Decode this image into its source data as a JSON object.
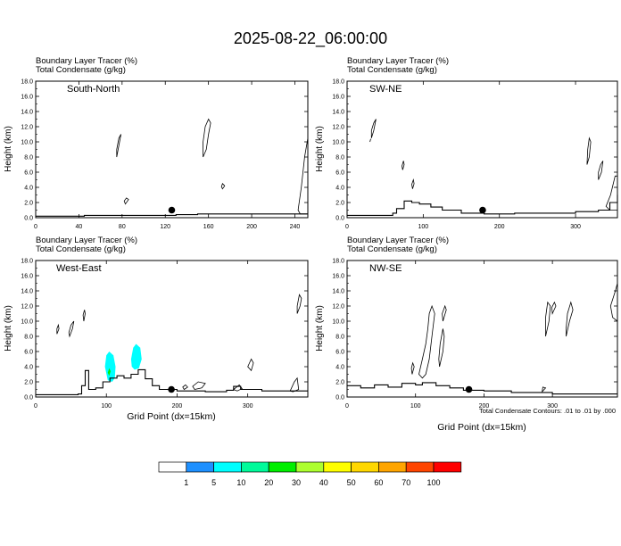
{
  "title": "2025-08-22_06:00:00",
  "xlabel": "Grid Point (dx=15km)",
  "ylabel": "Height (km)",
  "panel_header_1": "Boundary Layer Tracer   (%)",
  "panel_header_2": "Total Condensate   (g/kg)",
  "contour_note": "Total Condensate Contours: .01 to .01 by .000",
  "colorbar": {
    "labels": [
      "1",
      "5",
      "10",
      "20",
      "30",
      "40",
      "50",
      "60",
      "70",
      "100"
    ],
    "colors": [
      "#ffffff",
      "#1e90ff",
      "#00ffff",
      "#00fa9a",
      "#00ee00",
      "#adff2f",
      "#ffff00",
      "#ffd700",
      "#ffa500",
      "#ff4500",
      "#ff0000"
    ]
  },
  "chart_data": [
    {
      "type": "contour",
      "panel": "South-North",
      "ylim": [
        0,
        18
      ],
      "yticks": [
        "0.0",
        "2.0",
        "4.0",
        "6.0",
        "8.0",
        "10.0",
        "12.0",
        "14.0",
        "16.0",
        "18.0"
      ],
      "xlim": [
        0,
        252
      ],
      "xticks": [
        {
          "v": 0,
          "label": "0"
        },
        {
          "v": 40,
          "label": "40"
        },
        {
          "v": 80,
          "label": "80"
        },
        {
          "v": 120,
          "label": "120"
        },
        {
          "v": 160,
          "label": "160"
        },
        {
          "v": 200,
          "label": "200"
        },
        {
          "v": 240,
          "label": "240"
        }
      ],
      "marker": {
        "x": 126,
        "y": 1.0
      },
      "terrain": [
        [
          0,
          0.2
        ],
        [
          35,
          0.2
        ],
        [
          45,
          0.3
        ],
        [
          110,
          0.3
        ],
        [
          130,
          0.4
        ],
        [
          150,
          0.5
        ],
        [
          170,
          0.5
        ],
        [
          210,
          0.5
        ],
        [
          252,
          0.5
        ]
      ],
      "condensate_contours": [
        [
          [
            75,
            8
          ],
          [
            77,
            9.5
          ],
          [
            79,
            11
          ],
          [
            77,
            10.5
          ],
          [
            75,
            9
          ]
        ],
        [
          [
            155,
            8
          ],
          [
            158,
            9
          ],
          [
            160,
            11
          ],
          [
            162,
            12.5
          ],
          [
            160,
            13
          ],
          [
            157,
            12
          ],
          [
            155,
            10
          ]
        ],
        [
          [
            173,
            3.8
          ],
          [
            175,
            4.2
          ],
          [
            173,
            4.5
          ],
          [
            172,
            4.1
          ]
        ],
        [
          [
            83,
            1.8
          ],
          [
            86,
            2.4
          ],
          [
            84,
            2.6
          ],
          [
            82,
            2.2
          ]
        ],
        [
          [
            243,
            1
          ],
          [
            246,
            4
          ],
          [
            249,
            8
          ],
          [
            252,
            10.5
          ],
          [
            252,
            0.5
          ],
          [
            245,
            0.5
          ]
        ]
      ],
      "shaded_tracer": []
    },
    {
      "type": "contour",
      "panel": "SW-NE",
      "ylim": [
        0,
        18
      ],
      "yticks": [
        "0.0",
        "2.0",
        "4.0",
        "6.0",
        "8.0",
        "10.0",
        "12.0",
        "14.0",
        "16.0",
        "18.0"
      ],
      "xlim": [
        0,
        355
      ],
      "xticks": [
        {
          "v": 0,
          "label": "0"
        },
        {
          "v": 100,
          "label": "100"
        },
        {
          "v": 200,
          "label": "200"
        },
        {
          "v": 300,
          "label": "300"
        }
      ],
      "marker": {
        "x": 178,
        "y": 1.0
      },
      "terrain": [
        [
          0,
          0.3
        ],
        [
          55,
          0.3
        ],
        [
          60,
          0.6
        ],
        [
          65,
          1.2
        ],
        [
          75,
          2.2
        ],
        [
          85,
          2.0
        ],
        [
          95,
          1.8
        ],
        [
          110,
          1.4
        ],
        [
          125,
          1.0
        ],
        [
          150,
          0.6
        ],
        [
          180,
          0.5
        ],
        [
          220,
          0.6
        ],
        [
          260,
          0.6
        ],
        [
          300,
          0.8
        ],
        [
          330,
          1.0
        ],
        [
          345,
          2.0
        ],
        [
          355,
          3.0
        ]
      ],
      "condensate_contours": [
        [
          [
            32,
            10.5
          ],
          [
            35,
            11.5
          ],
          [
            38,
            13
          ],
          [
            35,
            12.5
          ],
          [
            32,
            11.5
          ]
        ],
        [
          [
            30,
            10
          ],
          [
            31,
            10.4
          ]
        ],
        [
          [
            73,
            6.3
          ],
          [
            75,
            7.0
          ],
          [
            74,
            7.5
          ],
          [
            72,
            6.8
          ]
        ],
        [
          [
            86,
            3.8
          ],
          [
            88,
            4.5
          ],
          [
            87,
            5.0
          ],
          [
            85,
            4.4
          ]
        ],
        [
          [
            315,
            7
          ],
          [
            318,
            8
          ],
          [
            320,
            10
          ],
          [
            318,
            10.5
          ],
          [
            316,
            9
          ]
        ],
        [
          [
            330,
            5
          ],
          [
            334,
            6
          ],
          [
            336,
            7.5
          ],
          [
            333,
            7
          ],
          [
            330,
            6
          ]
        ],
        [
          [
            340,
            1.5
          ],
          [
            346,
            3
          ],
          [
            352,
            5.5
          ],
          [
            355,
            5.5
          ],
          [
            355,
            1
          ],
          [
            345,
            1
          ]
        ]
      ],
      "shaded_tracer": []
    },
    {
      "type": "contour",
      "panel": "West-East",
      "ylim": [
        0,
        18
      ],
      "yticks": [
        "0.0",
        "2.0",
        "4.0",
        "6.0",
        "8.0",
        "10.0",
        "12.0",
        "14.0",
        "16.0",
        "18.0"
      ],
      "xlim": [
        0,
        385
      ],
      "xticks": [
        {
          "v": 0,
          "label": "0"
        },
        {
          "v": 100,
          "label": "100"
        },
        {
          "v": 200,
          "label": "200"
        },
        {
          "v": 300,
          "label": "300"
        }
      ],
      "marker": {
        "x": 192,
        "y": 1.0
      },
      "terrain": [
        [
          0,
          0.3
        ],
        [
          60,
          0.4
        ],
        [
          65,
          1.5
        ],
        [
          70,
          3.5
        ],
        [
          75,
          1.0
        ],
        [
          85,
          1.2
        ],
        [
          95,
          2.0
        ],
        [
          105,
          2.5
        ],
        [
          115,
          2.8
        ],
        [
          125,
          2.5
        ],
        [
          135,
          3.0
        ],
        [
          145,
          3.6
        ],
        [
          155,
          2.4
        ],
        [
          165,
          1.5
        ],
        [
          175,
          1.0
        ],
        [
          200,
          0.8
        ],
        [
          240,
          0.7
        ],
        [
          270,
          0.9
        ],
        [
          280,
          1.4
        ],
        [
          290,
          1.0
        ],
        [
          320,
          0.8
        ],
        [
          360,
          0.8
        ],
        [
          385,
          0.8
        ]
      ],
      "condensate_contours": [
        [
          [
            30,
            8.3
          ],
          [
            33,
            9
          ],
          [
            32,
            9.5
          ],
          [
            30,
            9
          ]
        ],
        [
          [
            48,
            8
          ],
          [
            52,
            9
          ],
          [
            54,
            10
          ],
          [
            50,
            9.5
          ],
          [
            47,
            8.5
          ]
        ],
        [
          [
            68,
            10
          ],
          [
            70,
            11
          ],
          [
            69,
            11.5
          ],
          [
            67,
            10.8
          ]
        ],
        [
          [
            210,
            1
          ],
          [
            215,
            1.3
          ],
          [
            212,
            1.6
          ],
          [
            208,
            1.3
          ]
        ],
        [
          [
            225,
            1
          ],
          [
            235,
            1.2
          ],
          [
            240,
            1.8
          ],
          [
            230,
            2
          ],
          [
            222,
            1.4
          ]
        ],
        [
          [
            280,
            1
          ],
          [
            288,
            1.6
          ],
          [
            292,
            1.1
          ],
          [
            285,
            0.8
          ]
        ],
        [
          [
            300,
            4
          ],
          [
            305,
            5
          ],
          [
            308,
            4.5
          ],
          [
            305,
            3.5
          ]
        ],
        [
          [
            370,
            11
          ],
          [
            374,
            12
          ],
          [
            376,
            13
          ],
          [
            373,
            13.5
          ],
          [
            370,
            12
          ]
        ],
        [
          [
            360,
            0.8
          ],
          [
            366,
            2
          ],
          [
            370,
            2.5
          ],
          [
            372,
            1
          ],
          [
            364,
            0.7
          ]
        ]
      ],
      "shaded_tracer": [
        {
          "level": "5",
          "pts": [
            [
              98,
              4
            ],
            [
              100,
              5.5
            ],
            [
              104,
              6
            ],
            [
              110,
              5.5
            ],
            [
              113,
              4
            ],
            [
              112,
              2.5
            ],
            [
              108,
              2
            ],
            [
              102,
              2.2
            ]
          ]
        },
        {
          "level": "20",
          "pts": [
            [
              102,
              3.2
            ],
            [
              104,
              3.8
            ],
            [
              106,
              3.4
            ],
            [
              104,
              2.8
            ]
          ]
        },
        {
          "level": "5",
          "pts": [
            [
              135,
              5
            ],
            [
              138,
              6.5
            ],
            [
              142,
              7
            ],
            [
              148,
              6.5
            ],
            [
              150,
              5
            ],
            [
              146,
              3.8
            ],
            [
              140,
              3.6
            ],
            [
              136,
              4
            ]
          ]
        }
      ]
    },
    {
      "type": "contour",
      "panel": "NW-SE",
      "ylim": [
        0,
        18
      ],
      "yticks": [
        "0.0",
        "2.0",
        "4.0",
        "6.0",
        "8.0",
        "10.0",
        "12.0",
        "14.0",
        "16.0",
        "18.0"
      ],
      "xlim": [
        0,
        395
      ],
      "xticks": [
        {
          "v": 0,
          "label": "0"
        },
        {
          "v": 100,
          "label": "100"
        },
        {
          "v": 200,
          "label": "200"
        },
        {
          "v": 300,
          "label": "300"
        }
      ],
      "marker": {
        "x": 178,
        "y": 1.0
      },
      "terrain": [
        [
          0,
          1.5
        ],
        [
          20,
          1.2
        ],
        [
          40,
          1.6
        ],
        [
          60,
          1.3
        ],
        [
          80,
          1.8
        ],
        [
          100,
          1.6
        ],
        [
          110,
          1.9
        ],
        [
          130,
          1.5
        ],
        [
          150,
          1.2
        ],
        [
          170,
          0.9
        ],
        [
          200,
          0.8
        ],
        [
          240,
          0.6
        ],
        [
          300,
          0.4
        ],
        [
          340,
          0.4
        ],
        [
          395,
          0.4
        ]
      ],
      "condensate_contours": [
        [
          [
            105,
            3
          ],
          [
            110,
            5
          ],
          [
            115,
            7
          ],
          [
            118,
            9
          ],
          [
            120,
            11
          ],
          [
            124,
            12
          ],
          [
            128,
            11
          ],
          [
            124,
            8
          ],
          [
            120,
            5
          ],
          [
            115,
            3
          ],
          [
            110,
            2.5
          ]
        ],
        [
          [
            135,
            4
          ],
          [
            140,
            6
          ],
          [
            142,
            8
          ],
          [
            140,
            9
          ],
          [
            136,
            7
          ],
          [
            134,
            5
          ]
        ],
        [
          [
            95,
            3
          ],
          [
            98,
            4
          ],
          [
            96,
            4.5
          ],
          [
            94,
            3.8
          ]
        ],
        [
          [
            140,
            10
          ],
          [
            145,
            11.5
          ],
          [
            143,
            12
          ],
          [
            139,
            11
          ]
        ],
        [
          [
            290,
            8
          ],
          [
            295,
            10
          ],
          [
            297,
            12
          ],
          [
            293,
            12.5
          ],
          [
            290,
            10.5
          ]
        ],
        [
          [
            300,
            11
          ],
          [
            305,
            12
          ],
          [
            303,
            12.5
          ],
          [
            299,
            11.8
          ]
        ],
        [
          [
            320,
            8
          ],
          [
            325,
            10
          ],
          [
            330,
            11.5
          ],
          [
            327,
            12.5
          ],
          [
            322,
            11
          ],
          [
            320,
            9
          ]
        ],
        [
          [
            385,
            12
          ],
          [
            392,
            14
          ],
          [
            395,
            15
          ],
          [
            395,
            10
          ],
          [
            388,
            10.5
          ]
        ],
        [
          [
            285,
            0.7
          ],
          [
            290,
            1.2
          ],
          [
            286,
            1.3
          ]
        ]
      ],
      "shaded_tracer": []
    }
  ]
}
